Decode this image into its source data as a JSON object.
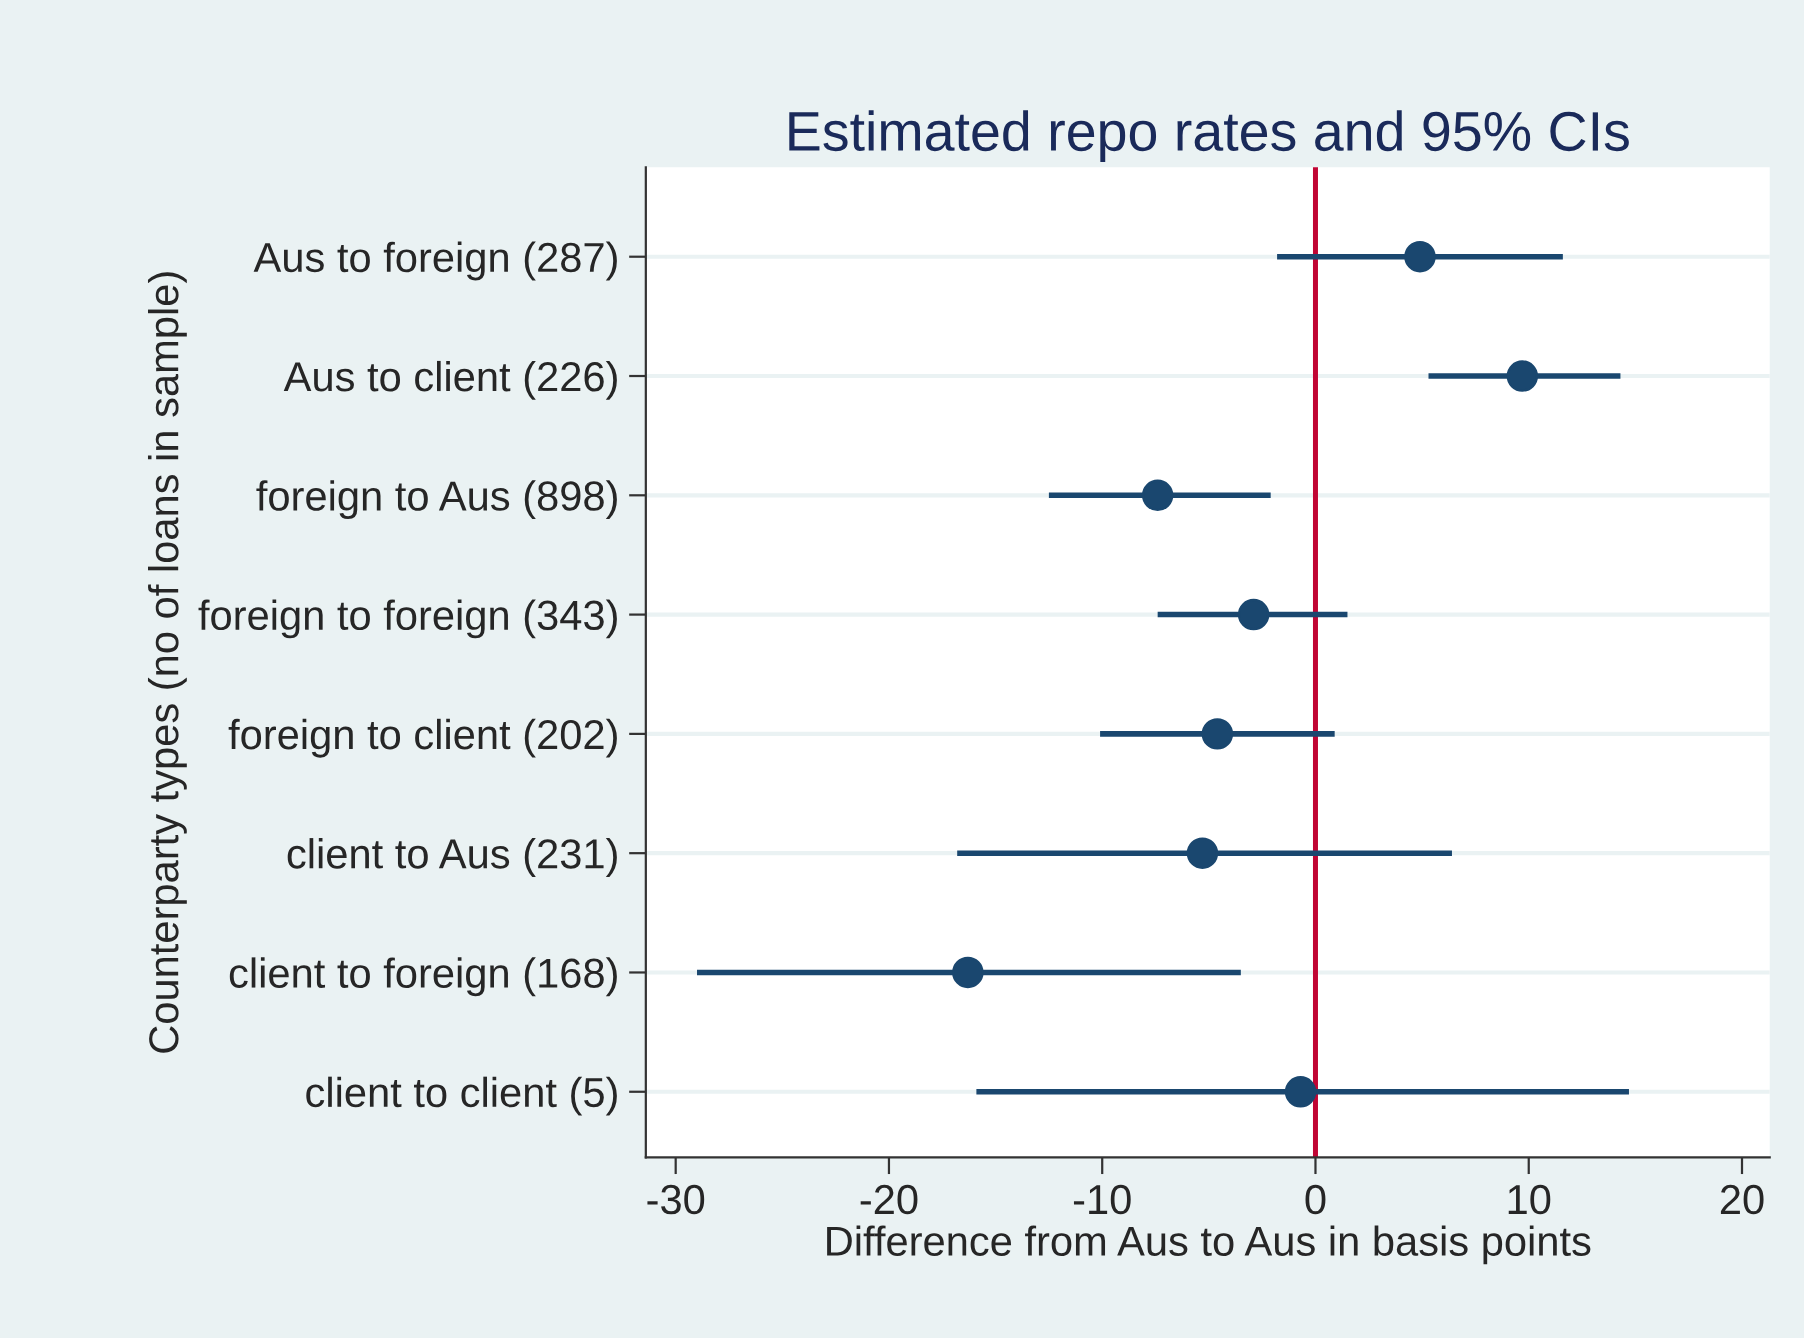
{
  "chart_data": {
    "type": "scatter",
    "orientation": "horizontal",
    "title": "Estimated repo rates and 95% CIs",
    "xlabel": "Difference from Aus to Aus in basis points",
    "ylabel": "Counterparty types (no of loans in sample)",
    "categories": [
      "Aus to foreign (287)",
      "Aus to client (226)",
      "foreign to Aus (898)",
      "foreign to foreign (343)",
      "foreign to client (202)",
      "client to Aus (231)",
      "client to foreign (168)",
      "client to client (5)"
    ],
    "series": [
      {
        "color": "#1a476f",
        "values": [
          4.9,
          9.7,
          -7.4,
          -2.9,
          -4.6,
          -5.3,
          -16.3,
          -0.7
        ],
        "errors": [
          [
            -1.8,
            11.6
          ],
          [
            5.3,
            14.3
          ],
          [
            -12.5,
            -2.1
          ],
          [
            -7.4,
            1.5
          ],
          [
            -10.1,
            0.9
          ],
          [
            -16.8,
            6.4
          ],
          [
            -29.0,
            -3.5
          ],
          [
            -15.9,
            14.7
          ]
        ]
      }
    ],
    "xlim": [
      -31.4,
      21.3
    ],
    "xticks": [
      -30,
      -20,
      -10,
      0,
      10,
      20
    ],
    "ref_lines": [
      {
        "axis": "x",
        "value": 0,
        "color": "#c10534"
      }
    ],
    "grid": "y",
    "marker": "circle",
    "legend": false
  }
}
